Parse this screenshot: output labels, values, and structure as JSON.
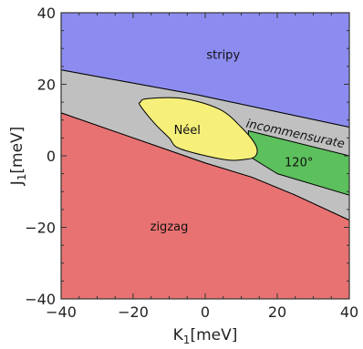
{
  "chart_data": {
    "type": "area",
    "title": "",
    "xlabel": "K",
    "xlabel_sub": "1",
    "xlabel_unit": "[meV]",
    "ylabel": "J",
    "ylabel_sub": "1",
    "ylabel_unit": "[meV]",
    "xlim": [
      -40,
      40
    ],
    "ylim": [
      -40,
      40
    ],
    "xticks": [
      -40,
      -20,
      0,
      20,
      40
    ],
    "yticks": [
      -40,
      -20,
      0,
      20,
      40
    ],
    "xtick_labels": [
      "−40",
      "−20",
      "0",
      "20",
      "40"
    ],
    "ytick_labels": [
      "−40",
      "−20",
      "0",
      "20",
      "40"
    ],
    "grid": false,
    "legend": "none",
    "colors": {
      "stripy": "#8c8cf0",
      "incommensurate": "#c0c0c0",
      "neel": "#f6f07a",
      "phase120": "#5cc05c",
      "zigzag": "#e87272",
      "boundary": "#000000"
    },
    "regions": [
      {
        "key": "stripy",
        "label": "stripy",
        "label_at": [
          5,
          28
        ],
        "polygon": [
          [
            -40,
            40
          ],
          [
            40,
            40
          ],
          [
            40,
            8
          ],
          [
            -2,
            17
          ],
          [
            -40,
            24
          ]
        ]
      },
      {
        "key": "incommensurate",
        "label": "incommensurate",
        "label_at": [
          25,
          6
        ],
        "polygon": [
          [
            -40,
            24
          ],
          [
            -2,
            17
          ],
          [
            40,
            8
          ],
          [
            40,
            -18
          ],
          [
            25,
            -11
          ],
          [
            13,
            -6
          ],
          [
            0,
            -2
          ],
          [
            -40,
            12
          ]
        ]
      },
      {
        "key": "phase120",
        "label": "120°",
        "label_at": [
          26,
          -2
        ],
        "polygon": [
          [
            12,
            7
          ],
          [
            40,
            0
          ],
          [
            40,
            -11
          ],
          [
            20,
            -5
          ],
          [
            12,
            0
          ]
        ]
      },
      {
        "key": "zigzag",
        "label": "zigzag",
        "label_at": [
          -10,
          -20
        ],
        "polygon": [
          [
            -40,
            12
          ],
          [
            0,
            -2
          ],
          [
            13,
            -6
          ],
          [
            25,
            -11
          ],
          [
            40,
            -18
          ],
          [
            40,
            -40
          ],
          [
            -40,
            -40
          ]
        ]
      },
      {
        "key": "neel",
        "label": "Néel",
        "label_at": [
          -5,
          7
        ],
        "polygon": [
          [
            -18,
            15
          ],
          [
            -16,
            16
          ],
          [
            -6,
            16
          ],
          [
            4,
            13
          ],
          [
            10,
            8
          ],
          [
            14,
            3
          ],
          [
            14,
            0
          ],
          [
            11,
            -1
          ],
          [
            5,
            -1
          ],
          [
            -7,
            2
          ],
          [
            -10,
            5
          ],
          [
            -14,
            9
          ],
          [
            -18,
            14
          ]
        ]
      }
    ]
  }
}
